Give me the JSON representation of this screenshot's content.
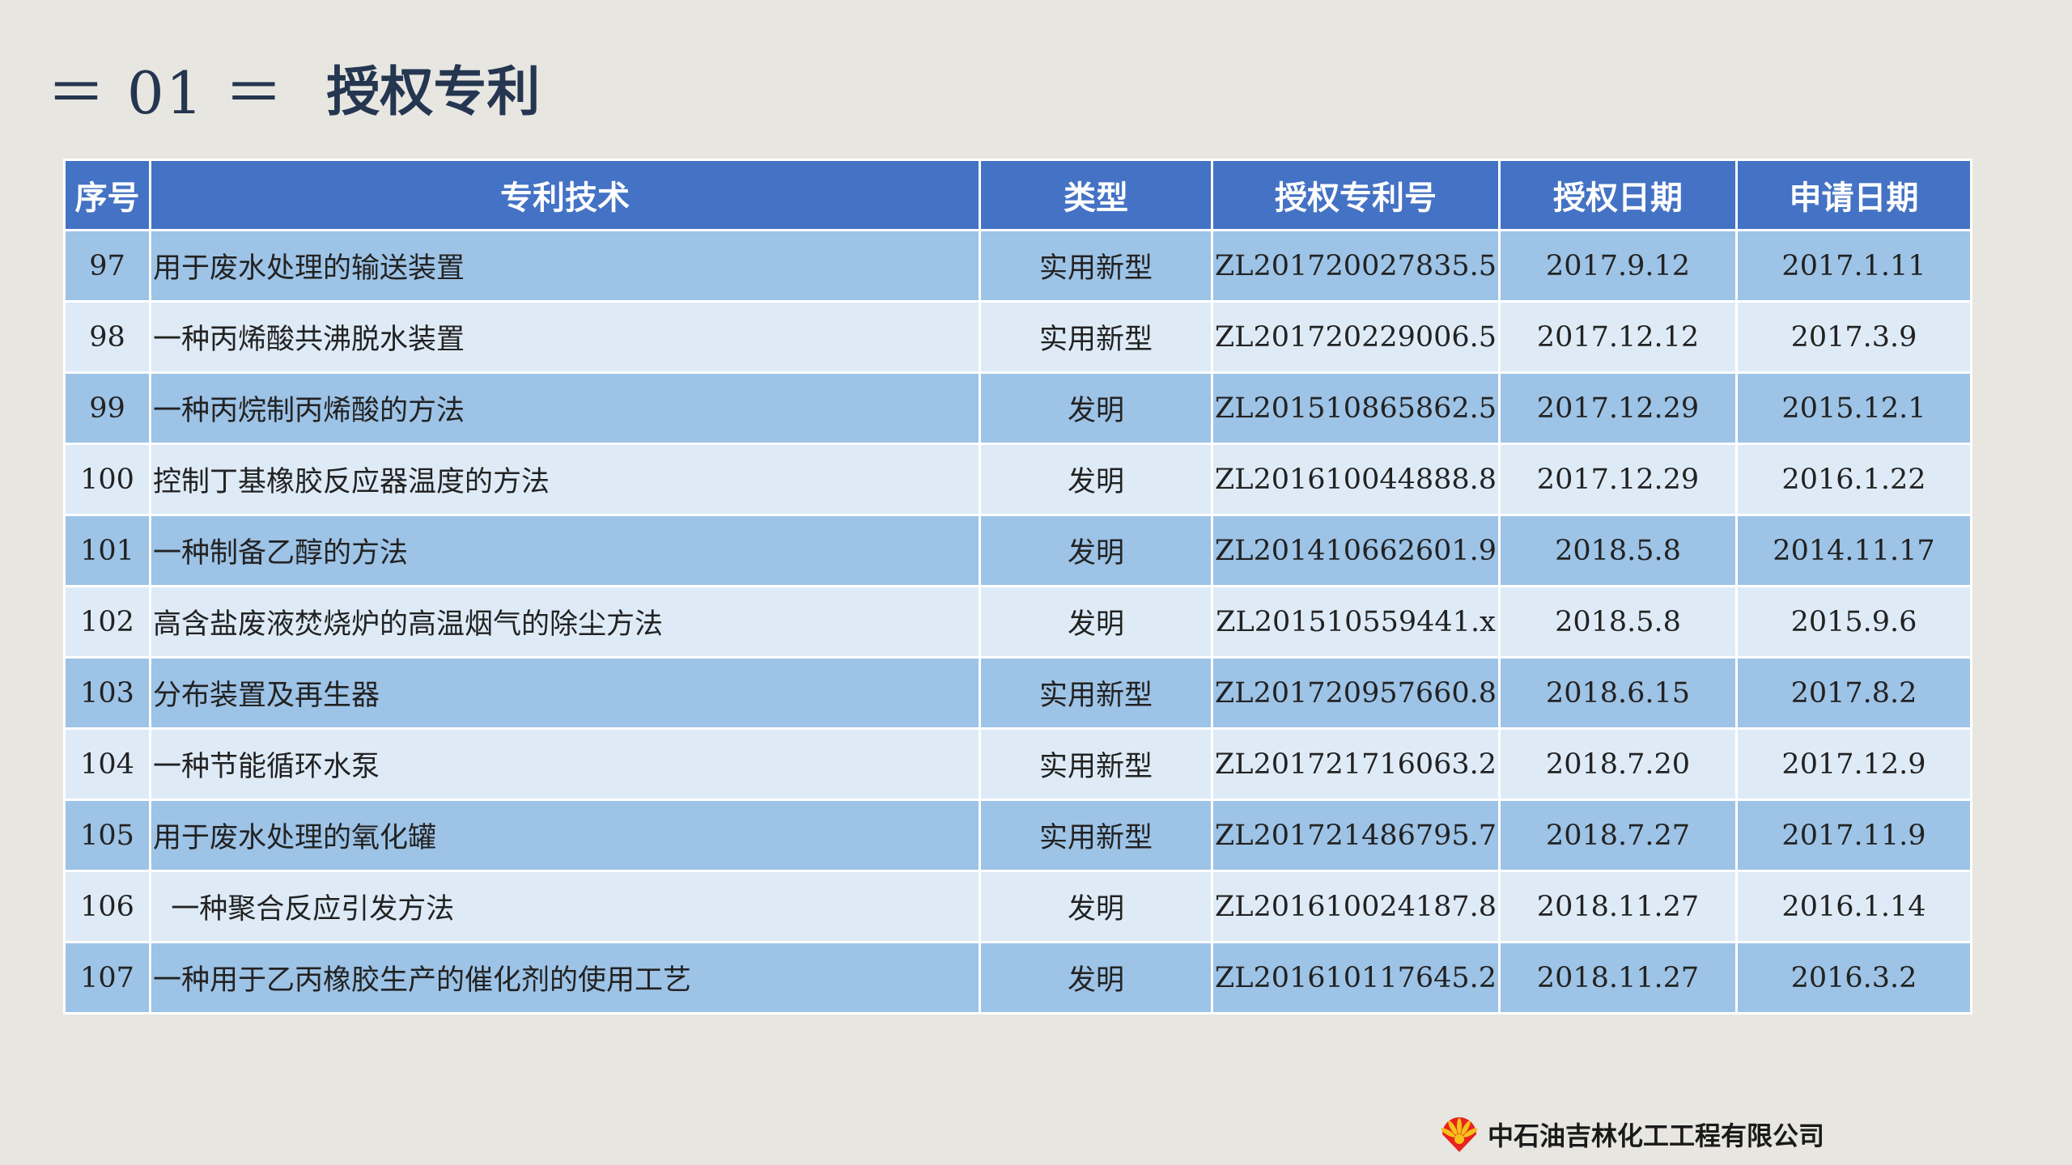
{
  "header": {
    "section_number": "＝ 01 ＝",
    "title": "授权专利"
  },
  "table": {
    "columns": [
      "序号",
      "专利技术",
      "类型",
      "授权专利号",
      "授权日期",
      "申请日期"
    ],
    "rows": [
      {
        "no": "97",
        "name": "用于废水处理的输送装置",
        "type": "实用新型",
        "patent_no": "ZL201720027835.5",
        "grant_date": "2017.9.12",
        "apply_date": "2017.1.11"
      },
      {
        "no": "98",
        "name": "一种丙烯酸共沸脱水装置",
        "type": "实用新型",
        "patent_no": "ZL201720229006.5",
        "grant_date": "2017.12.12",
        "apply_date": "2017.3.9"
      },
      {
        "no": "99",
        "name": "一种丙烷制丙烯酸的方法",
        "type": "发明",
        "patent_no": "ZL201510865862.5",
        "grant_date": "2017.12.29",
        "apply_date": "2015.12.1"
      },
      {
        "no": "100",
        "name": "控制丁基橡胶反应器温度的方法",
        "type": "发明",
        "patent_no": "ZL201610044888.8",
        "grant_date": "2017.12.29",
        "apply_date": "2016.1.22"
      },
      {
        "no": "101",
        "name": "一种制备乙醇的方法",
        "type": "发明",
        "patent_no": "ZL201410662601.9",
        "grant_date": "2018.5.8",
        "apply_date": "2014.11.17"
      },
      {
        "no": "102",
        "name": "高含盐废液焚烧炉的高温烟气的除尘方法",
        "type": "发明",
        "patent_no": "ZL201510559441.x",
        "grant_date": "2018.5.8",
        "apply_date": "2015.9.6"
      },
      {
        "no": "103",
        "name": "分布装置及再生器",
        "type": "实用新型",
        "patent_no": "ZL201720957660.8",
        "grant_date": "2018.6.15",
        "apply_date": "2017.8.2"
      },
      {
        "no": "104",
        "name": "一种节能循环水泵",
        "type": "实用新型",
        "patent_no": "ZL201721716063.2",
        "grant_date": "2018.7.20",
        "apply_date": "2017.12.9"
      },
      {
        "no": "105",
        "name": "用于废水处理的氧化罐",
        "type": "实用新型",
        "patent_no": "ZL201721486795.7",
        "grant_date": "2018.7.27",
        "apply_date": "2017.11.9"
      },
      {
        "no": "106",
        "name": "  一种聚合反应引发方法",
        "type": "发明",
        "patent_no": "ZL201610024187.8",
        "grant_date": "2018.11.27",
        "apply_date": "2016.1.14"
      },
      {
        "no": "107",
        "name": "一种用于乙丙橡胶生产的催化剂的使用工艺",
        "type": "发明",
        "patent_no": "ZL201610117645.2",
        "grant_date": "2018.11.27",
        "apply_date": "2016.3.2"
      }
    ]
  },
  "footer": {
    "company": "中石油吉林化工工程有限公司",
    "logo_icon": "petrochina-logo-icon"
  },
  "colors": {
    "header_bg": "#4472c4",
    "row_dark": "#9dc3e6",
    "row_light": "#deebf7",
    "title_color": "#243650",
    "page_bg": "#e8e6e1"
  }
}
